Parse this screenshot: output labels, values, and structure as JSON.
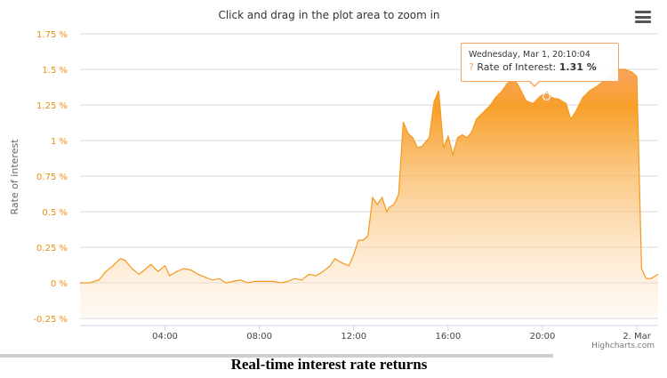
{
  "header": {
    "zoom_hint": "Click and drag in the plot area to zoom in",
    "menu_icon": "hamburger-menu-icon"
  },
  "tooltip": {
    "date": "Wednesday, Mar 1, 20:10:04",
    "marker": "?",
    "series_label": "Rate of Interest:",
    "value": "1.31 %"
  },
  "credits": "Highcharts.com",
  "caption": "Real-time interest rate returns",
  "colors": {
    "series": "#f7a35c",
    "series_line": "#f4991e",
    "axis_label": "#e8900e",
    "grid": "#d8d8d8"
  },
  "chart_data": {
    "type": "area",
    "ylabel": "Rate of interest",
    "ylim": [
      -0.25,
      1.75
    ],
    "y_ticks": [
      -0.25,
      0,
      0.25,
      0.5,
      0.75,
      1,
      1.25,
      1.5,
      1.75
    ],
    "y_tick_labels": [
      "-0.25 %",
      "0 %",
      "0.25 %",
      "0.5 %",
      "0.75 %",
      "1 %",
      "1.25 %",
      "1.5 %",
      "1.75 %"
    ],
    "x_range_hours": [
      0.4,
      24.9
    ],
    "x_ticks": [
      4,
      8,
      12,
      16,
      20,
      24
    ],
    "x_tick_labels": [
      "04:00",
      "08:00",
      "12:00",
      "16:00",
      "20:00",
      "2. Mar"
    ],
    "grid": true,
    "legend": "none",
    "series": [
      {
        "name": "Rate of Interest",
        "x": [
          0.4,
          0.8,
          1.2,
          1.5,
          1.8,
          2.1,
          2.3,
          2.6,
          2.9,
          3.2,
          3.4,
          3.7,
          4.0,
          4.2,
          4.5,
          4.8,
          5.1,
          5.4,
          5.7,
          6.0,
          6.3,
          6.6,
          6.9,
          7.2,
          7.5,
          7.8,
          8.0,
          8.3,
          8.6,
          8.9,
          9.2,
          9.5,
          9.8,
          10.1,
          10.4,
          10.7,
          11.0,
          11.2,
          11.5,
          11.8,
          12.0,
          12.2,
          12.4,
          12.6,
          12.8,
          13.0,
          13.2,
          13.4,
          13.5,
          13.7,
          13.9,
          14.1,
          14.3,
          14.5,
          14.7,
          14.9,
          15.0,
          15.2,
          15.4,
          15.6,
          15.8,
          16.0,
          16.2,
          16.4,
          16.6,
          16.8,
          17.0,
          17.2,
          17.5,
          17.8,
          18.0,
          18.3,
          18.5,
          18.8,
          19.0,
          19.3,
          19.6,
          19.9,
          20.2,
          20.4,
          20.7,
          21.0,
          21.2,
          21.4,
          21.7,
          22.0,
          22.3,
          22.6,
          22.9,
          23.2,
          23.5,
          23.8,
          24.0,
          24.2,
          24.4,
          24.6,
          24.9
        ],
        "y": [
          0,
          0,
          0.02,
          0.08,
          0.12,
          0.17,
          0.16,
          0.1,
          0.06,
          0.1,
          0.13,
          0.08,
          0.12,
          0.05,
          0.08,
          0.1,
          0.09,
          0.06,
          0.04,
          0.02,
          0.03,
          0,
          0.01,
          0.02,
          0,
          0.01,
          0.01,
          0.01,
          0.01,
          0,
          0.01,
          0.03,
          0.02,
          0.06,
          0.05,
          0.08,
          0.12,
          0.17,
          0.14,
          0.12,
          0.2,
          0.3,
          0.3,
          0.33,
          0.6,
          0.55,
          0.6,
          0.5,
          0.53,
          0.55,
          0.62,
          1.13,
          1.05,
          1.02,
          0.95,
          0.96,
          0.98,
          1.02,
          1.27,
          1.35,
          0.95,
          1.03,
          0.9,
          1.02,
          1.04,
          1.02,
          1.06,
          1.15,
          1.2,
          1.25,
          1.3,
          1.35,
          1.4,
          1.43,
          1.38,
          1.28,
          1.26,
          1.31,
          1.34,
          1.3,
          1.29,
          1.26,
          1.15,
          1.2,
          1.3,
          1.35,
          1.38,
          1.42,
          1.48,
          1.5,
          1.5,
          1.48,
          1.45,
          0.1,
          0.03,
          0.03,
          0.06
        ]
      }
    ],
    "highlighted_point": {
      "x": 20.17,
      "y": 1.31
    }
  }
}
